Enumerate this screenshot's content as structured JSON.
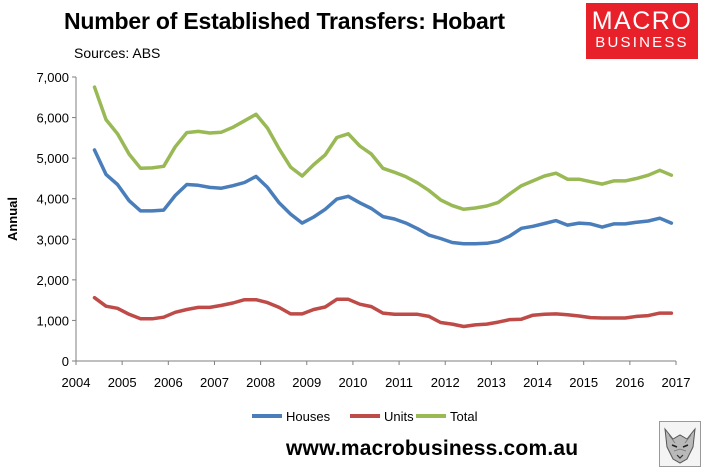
{
  "header": {
    "title": "Number of Established Transfers: Hobart",
    "sources": "Sources: ABS"
  },
  "logo": {
    "line1": "MACRO",
    "line2": "BUSINESS"
  },
  "footer": {
    "website": "www.macrobusiness.com.au"
  },
  "colors": {
    "houses": "#4a7ebb",
    "units": "#be4b48",
    "total": "#98b954",
    "logo_bg": "#e8202a"
  },
  "chart_data": {
    "type": "line",
    "title": "Number of Established Transfers: Hobart",
    "xlabel": "",
    "ylabel": "Annual",
    "xlim": [
      2004,
      2017
    ],
    "ylim": [
      0,
      7000
    ],
    "x_ticks": [
      "2004",
      "2005",
      "2006",
      "2007",
      "2008",
      "2009",
      "2010",
      "2011",
      "2012",
      "2013",
      "2014",
      "2015",
      "2016",
      "2017"
    ],
    "y_ticks": [
      "0",
      "1,000",
      "2,000",
      "3,000",
      "4,000",
      "5,000",
      "6,000",
      "7,000"
    ],
    "grid": false,
    "legend": "bottom",
    "x": [
      2004.4,
      2004.65,
      2004.9,
      2005.15,
      2005.4,
      2005.65,
      2005.9,
      2006.15,
      2006.4,
      2006.65,
      2006.9,
      2007.15,
      2007.4,
      2007.65,
      2007.9,
      2008.15,
      2008.4,
      2008.65,
      2008.9,
      2009.15,
      2009.4,
      2009.65,
      2009.9,
      2010.15,
      2010.4,
      2010.65,
      2010.9,
      2011.15,
      2011.4,
      2011.65,
      2011.9,
      2012.15,
      2012.4,
      2012.65,
      2012.9,
      2013.15,
      2013.4,
      2013.65,
      2013.9,
      2014.15,
      2014.4,
      2014.65,
      2014.9,
      2015.15,
      2015.4,
      2015.65,
      2015.9,
      2016.15,
      2016.4,
      2016.65,
      2016.9
    ],
    "series": [
      {
        "name": "Houses",
        "color": "#4a7ebb",
        "values": [
          5200,
          4600,
          4350,
          3950,
          3700,
          3700,
          3720,
          4080,
          4350,
          4330,
          4280,
          4260,
          4320,
          4400,
          4550,
          4280,
          3900,
          3620,
          3400,
          3550,
          3740,
          3990,
          4060,
          3900,
          3760,
          3560,
          3500,
          3400,
          3260,
          3100,
          3020,
          2920,
          2890,
          2890,
          2900,
          2950,
          3080,
          3270,
          3320,
          3390,
          3460,
          3350,
          3400,
          3380,
          3300,
          3380,
          3380,
          3420,
          3450,
          3520,
          3400
        ]
      },
      {
        "name": "Units",
        "color": "#be4b48",
        "values": [
          1560,
          1350,
          1300,
          1150,
          1040,
          1040,
          1080,
          1200,
          1270,
          1320,
          1320,
          1370,
          1430,
          1510,
          1510,
          1440,
          1320,
          1160,
          1160,
          1270,
          1330,
          1520,
          1520,
          1400,
          1340,
          1180,
          1150,
          1150,
          1150,
          1100,
          950,
          910,
          850,
          890,
          910,
          960,
          1020,
          1030,
          1130,
          1150,
          1160,
          1140,
          1110,
          1070,
          1060,
          1060,
          1060,
          1100,
          1120,
          1180,
          1180
        ]
      },
      {
        "name": "Total",
        "color": "#98b954",
        "values": [
          6750,
          5950,
          5600,
          5100,
          4750,
          4760,
          4800,
          5280,
          5630,
          5660,
          5620,
          5640,
          5760,
          5920,
          6080,
          5740,
          5230,
          4780,
          4560,
          4840,
          5080,
          5510,
          5600,
          5300,
          5100,
          4750,
          4650,
          4540,
          4390,
          4200,
          3970,
          3830,
          3740,
          3770,
          3820,
          3910,
          4120,
          4320,
          4440,
          4560,
          4630,
          4480,
          4480,
          4420,
          4360,
          4440,
          4440,
          4500,
          4580,
          4700,
          4580
        ]
      }
    ]
  }
}
